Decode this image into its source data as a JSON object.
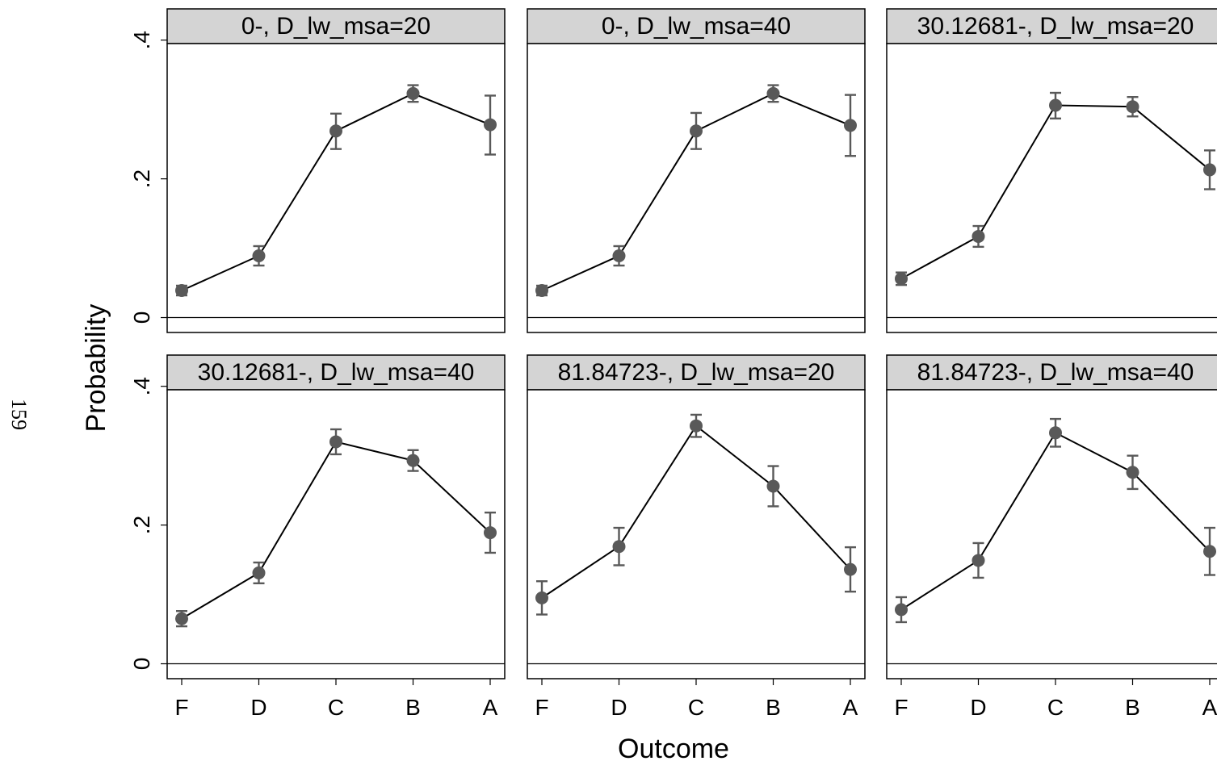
{
  "page_number": "159",
  "chart_data": {
    "type": "line",
    "ylabel": "Probability",
    "xlabel": "Outcome",
    "categories": [
      "F",
      "D",
      "C",
      "B",
      "A"
    ],
    "y_ticks": [
      0,
      0.2,
      0.4
    ],
    "y_tick_labels": [
      "0",
      ".2",
      ".4"
    ],
    "ylim": [
      -0.02,
      0.4
    ],
    "grid": false,
    "marker_color": "#595959",
    "line_color": "#000000",
    "header_fill": "#d4d4d4",
    "panels": [
      {
        "title": "0-, D_lw_msa=20",
        "values": [
          0.039,
          0.089,
          0.269,
          0.323,
          0.278
        ],
        "ci_low": [
          0.032,
          0.075,
          0.243,
          0.311,
          0.235
        ],
        "ci_high": [
          0.046,
          0.103,
          0.294,
          0.335,
          0.32
        ]
      },
      {
        "title": "0-, D_lw_msa=40",
        "values": [
          0.039,
          0.089,
          0.269,
          0.323,
          0.277
        ],
        "ci_low": [
          0.032,
          0.075,
          0.243,
          0.311,
          0.233
        ],
        "ci_high": [
          0.046,
          0.103,
          0.295,
          0.335,
          0.321
        ]
      },
      {
        "title": "30.12681-, D_lw_msa=20",
        "values": [
          0.056,
          0.117,
          0.306,
          0.304,
          0.213
        ],
        "ci_low": [
          0.047,
          0.102,
          0.287,
          0.29,
          0.185
        ],
        "ci_high": [
          0.065,
          0.132,
          0.324,
          0.318,
          0.241
        ]
      },
      {
        "title": "30.12681-, D_lw_msa=40",
        "values": [
          0.065,
          0.131,
          0.32,
          0.293,
          0.189
        ],
        "ci_low": [
          0.054,
          0.116,
          0.302,
          0.278,
          0.16
        ],
        "ci_high": [
          0.076,
          0.146,
          0.338,
          0.308,
          0.218
        ]
      },
      {
        "title": "81.84723-, D_lw_msa=20",
        "values": [
          0.095,
          0.169,
          0.343,
          0.256,
          0.136
        ],
        "ci_low": [
          0.071,
          0.142,
          0.327,
          0.227,
          0.104
        ],
        "ci_high": [
          0.119,
          0.196,
          0.359,
          0.285,
          0.168
        ]
      },
      {
        "title": "81.84723-, D_lw_msa=40",
        "values": [
          0.078,
          0.149,
          0.333,
          0.276,
          0.162
        ],
        "ci_low": [
          0.06,
          0.124,
          0.313,
          0.252,
          0.128
        ],
        "ci_high": [
          0.096,
          0.174,
          0.353,
          0.3,
          0.196
        ]
      }
    ]
  }
}
